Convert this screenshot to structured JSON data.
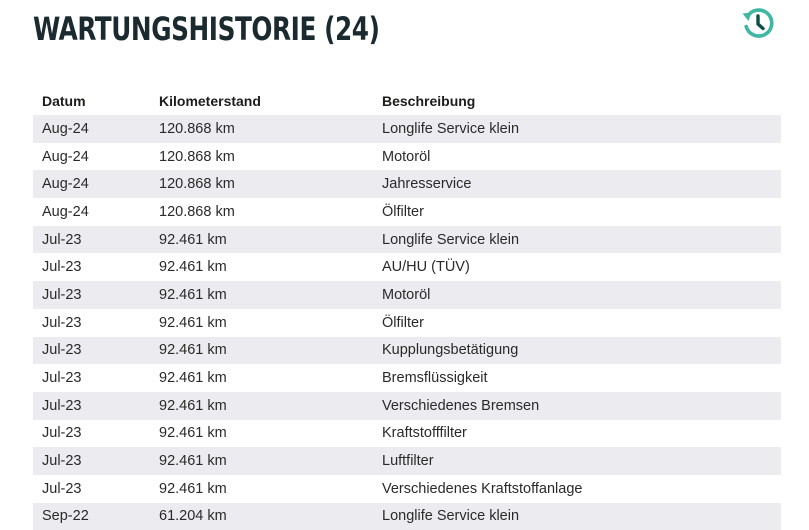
{
  "header": {
    "title": "WARTUNGSHISTORIE (24)",
    "history_icon": "history-clock-icon",
    "accent_color": "#3fb7a3"
  },
  "table": {
    "columns": [
      "Datum",
      "Kilometerstand",
      "Beschreibung"
    ],
    "rows": [
      {
        "date": "Aug-24",
        "km": "120.868 km",
        "desc": "Longlife Service klein"
      },
      {
        "date": "Aug-24",
        "km": "120.868 km",
        "desc": "Motoröl"
      },
      {
        "date": "Aug-24",
        "km": "120.868 km",
        "desc": "Jahresservice"
      },
      {
        "date": "Aug-24",
        "km": "120.868 km",
        "desc": "Ölfilter"
      },
      {
        "date": "Jul-23",
        "km": "92.461 km",
        "desc": "Longlife Service klein"
      },
      {
        "date": "Jul-23",
        "km": "92.461 km",
        "desc": "AU/HU (TÜV)"
      },
      {
        "date": "Jul-23",
        "km": "92.461 km",
        "desc": "Motoröl"
      },
      {
        "date": "Jul-23",
        "km": "92.461 km",
        "desc": "Ölfilter"
      },
      {
        "date": "Jul-23",
        "km": "92.461 km",
        "desc": "Kupplungsbetätigung"
      },
      {
        "date": "Jul-23",
        "km": "92.461 km",
        "desc": "Bremsflüssigkeit"
      },
      {
        "date": "Jul-23",
        "km": "92.461 km",
        "desc": "Verschiedenes Bremsen"
      },
      {
        "date": "Jul-23",
        "km": "92.461 km",
        "desc": "Kraftstofffilter"
      },
      {
        "date": "Jul-23",
        "km": "92.461 km",
        "desc": "Luftfilter"
      },
      {
        "date": "Jul-23",
        "km": "92.461 km",
        "desc": "Verschiedenes Kraftstoffanlage"
      },
      {
        "date": "Sep-22",
        "km": "61.204 km",
        "desc": "Longlife Service klein"
      }
    ]
  }
}
